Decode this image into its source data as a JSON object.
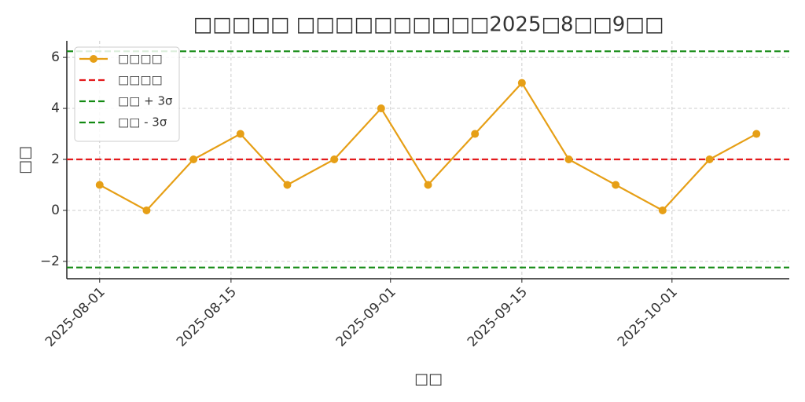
{
  "chart_data": {
    "type": "line",
    "title": "□□□□□ □□□□□□□□□□2025□8□□9□□",
    "x_label": "□□",
    "y_label": "□□",
    "x": [
      "2025-08-01",
      "2025-08-06",
      "2025-08-11",
      "2025-08-16",
      "2025-08-21",
      "2025-08-26",
      "2025-08-31",
      "2025-09-05",
      "2025-09-10",
      "2025-09-15",
      "2025-09-20",
      "2025-09-25",
      "2025-09-30",
      "2025-10-05",
      "2025-10-10"
    ],
    "series": [
      {
        "name": "□□□□",
        "color": "#e69f16",
        "values": [
          1,
          0,
          2,
          3,
          1,
          2,
          4,
          1,
          3,
          5,
          2,
          1,
          0,
          2,
          3
        ]
      }
    ],
    "hlines": [
      {
        "name": "□□□□",
        "color": "#e31a1c",
        "value": 2
      },
      {
        "name": "□□ + 3σ",
        "color": "#138a13",
        "value": 6.24
      },
      {
        "name": "□□ - 3σ",
        "color": "#138a13",
        "value": -2.24
      }
    ],
    "xlim": [
      "2025-07-28T12:00:00Z",
      "2025-10-13T12:00:00Z"
    ],
    "xticks": [
      "2025-08-01",
      "2025-08-15",
      "2025-09-01",
      "2025-09-15",
      "2025-10-01"
    ],
    "ylim": [
      -2.68,
      6.65
    ],
    "yticks": [
      {
        "value": -2,
        "label": "−2"
      },
      0,
      2,
      4,
      6
    ],
    "grid": true,
    "legend": "upper-left"
  }
}
